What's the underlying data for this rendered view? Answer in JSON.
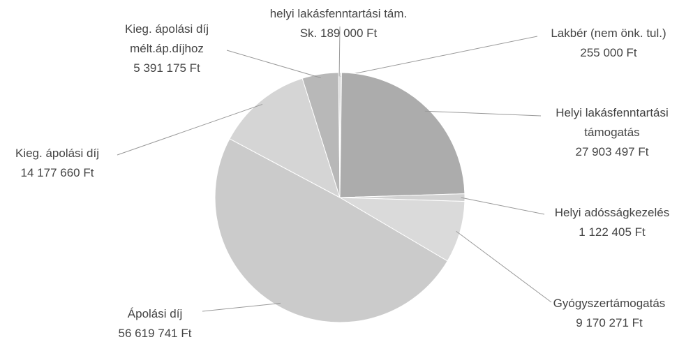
{
  "chart_data": {
    "type": "pie",
    "categories": [
      "Lakbér (nem önk. tul.)",
      "Helyi lakásfenntartási támogatás",
      "Helyi adósságkezelés",
      "Gyógyszertámogatás",
      "Ápolási díj",
      "Kieg. ápolási díj",
      "Kieg. ápolási díj mélt.áp.díjhoz",
      "helyi lakásfenntartási tám. Sk."
    ],
    "values": [
      255000,
      27903497,
      1122405,
      9170271,
      56619741,
      14177660,
      5391175,
      189000
    ],
    "value_labels": [
      "255 000 Ft",
      "27 903 497 Ft",
      "1 122 405 Ft",
      "9 170 271 Ft",
      "56 619 741 Ft",
      "14 177 660 Ft",
      "5 391 175 Ft",
      "189 000 Ft"
    ],
    "colors": [
      "#d6d6d6",
      "#acacac",
      "#d2d2d2",
      "#dadada",
      "#cbcbcb",
      "#d5d5d5",
      "#b8b8b8",
      "#c2c2c2"
    ]
  }
}
